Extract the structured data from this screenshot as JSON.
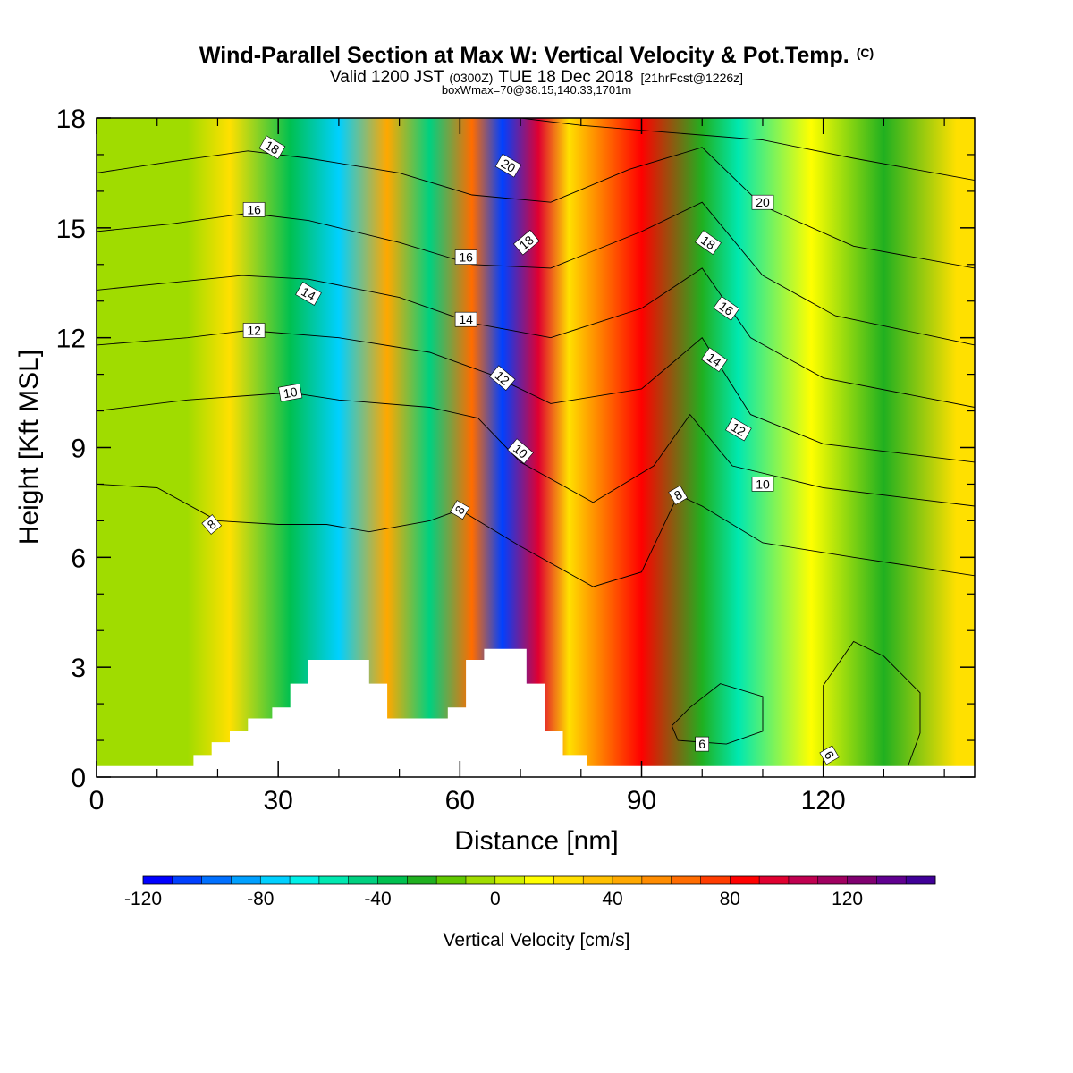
{
  "header": {
    "title": "Wind-Parallel Section at Max W: Vertical Velocity & Pot.Temp.",
    "copyright": "(C)",
    "valid_main": "Valid 1200 JST",
    "valid_utc": "(0300Z)",
    "valid_date": "TUE 18 Dec 2018",
    "forecast": "[21hrFcst@1226z]",
    "box_info": "boxWmax=70@38.15,140.33,1701m"
  },
  "chart_data": {
    "type": "heatmap",
    "xlabel": "Distance [nm]",
    "ylabel": "Height [Kft MSL]",
    "xlim": [
      0,
      145
    ],
    "ylim": [
      0,
      18
    ],
    "x_ticks": [
      {
        "value": 0,
        "label": "0"
      },
      {
        "value": 30,
        "label": "30"
      },
      {
        "value": 60,
        "label": "60"
      },
      {
        "value": 90,
        "label": "90"
      },
      {
        "value": 120,
        "label": "120"
      }
    ],
    "y_ticks": [
      {
        "value": 0,
        "label": "0"
      },
      {
        "value": 3,
        "label": "3"
      },
      {
        "value": 6,
        "label": "6"
      },
      {
        "value": 9,
        "label": "9"
      },
      {
        "value": 12,
        "label": "12"
      },
      {
        "value": 15,
        "label": "15"
      },
      {
        "value": 18,
        "label": "18"
      }
    ],
    "field": "Vertical Velocity",
    "bands": [
      {
        "x": 5,
        "w": -8
      },
      {
        "x": 15,
        "w": -3
      },
      {
        "x": 22,
        "w": 28
      },
      {
        "x": 32,
        "w": -35
      },
      {
        "x": 40,
        "w": -75
      },
      {
        "x": 48,
        "w": 45
      },
      {
        "x": 55,
        "w": -45
      },
      {
        "x": 62,
        "w": 65
      },
      {
        "x": 67,
        "w": -110
      },
      {
        "x": 73,
        "w": 90
      },
      {
        "x": 78,
        "w": 20
      },
      {
        "x": 90,
        "w": 80
      },
      {
        "x": 100,
        "w": -25
      },
      {
        "x": 106,
        "w": -60
      },
      {
        "x": 118,
        "w": 18
      },
      {
        "x": 130,
        "w": -30
      },
      {
        "x": 142,
        "w": 20
      }
    ],
    "terrain": [
      {
        "x": 0,
        "h": 0.3
      },
      {
        "x": 16,
        "h": 0.3
      },
      {
        "x": 16,
        "h": 0.6
      },
      {
        "x": 19,
        "h": 0.6
      },
      {
        "x": 19,
        "h": 0.95
      },
      {
        "x": 22,
        "h": 0.95
      },
      {
        "x": 22,
        "h": 1.25
      },
      {
        "x": 25,
        "h": 1.25
      },
      {
        "x": 25,
        "h": 1.6
      },
      {
        "x": 29,
        "h": 1.6
      },
      {
        "x": 29,
        "h": 1.9
      },
      {
        "x": 32,
        "h": 1.9
      },
      {
        "x": 32,
        "h": 2.55
      },
      {
        "x": 35,
        "h": 2.55
      },
      {
        "x": 35,
        "h": 3.2
      },
      {
        "x": 45,
        "h": 3.2
      },
      {
        "x": 45,
        "h": 2.55
      },
      {
        "x": 48,
        "h": 2.55
      },
      {
        "x": 48,
        "h": 1.6
      },
      {
        "x": 58,
        "h": 1.6
      },
      {
        "x": 58,
        "h": 1.9
      },
      {
        "x": 61,
        "h": 1.9
      },
      {
        "x": 61,
        "h": 3.2
      },
      {
        "x": 64,
        "h": 3.2
      },
      {
        "x": 64,
        "h": 3.5
      },
      {
        "x": 71,
        "h": 3.5
      },
      {
        "x": 71,
        "h": 2.55
      },
      {
        "x": 74,
        "h": 2.55
      },
      {
        "x": 74,
        "h": 1.25
      },
      {
        "x": 77,
        "h": 1.25
      },
      {
        "x": 77,
        "h": 0.6
      },
      {
        "x": 81,
        "h": 0.6
      },
      {
        "x": 81,
        "h": 0.3
      },
      {
        "x": 145,
        "h": 0.3
      }
    ],
    "isentropes": [
      {
        "level": 6,
        "points": [
          [
            95,
            1.4
          ],
          [
            98,
            1.9
          ],
          [
            103,
            2.55
          ],
          [
            110,
            2.2
          ],
          [
            110,
            1.25
          ],
          [
            104,
            0.9
          ],
          [
            96,
            1.0
          ],
          [
            95,
            1.4
          ]
        ]
      },
      {
        "level": 6,
        "points": [
          [
            120,
            0.3
          ],
          [
            120,
            2.5
          ],
          [
            125,
            3.7
          ],
          [
            130,
            3.3
          ],
          [
            136,
            2.3
          ],
          [
            136,
            1.2
          ],
          [
            134,
            0.3
          ]
        ]
      },
      {
        "level": 8,
        "points": [
          [
            0,
            8.0
          ],
          [
            10,
            7.9
          ],
          [
            20,
            7.0
          ],
          [
            30,
            6.9
          ],
          [
            38,
            6.9
          ],
          [
            45,
            6.7
          ],
          [
            55,
            7.0
          ],
          [
            60,
            7.3
          ],
          [
            70,
            6.3
          ],
          [
            82,
            5.2
          ],
          [
            90,
            5.6
          ],
          [
            96,
            7.7
          ],
          [
            100,
            7.4
          ],
          [
            110,
            6.4
          ],
          [
            125,
            6.0
          ],
          [
            145,
            5.5
          ]
        ]
      },
      {
        "level": 10,
        "points": [
          [
            0,
            10.0
          ],
          [
            15,
            10.3
          ],
          [
            32,
            10.5
          ],
          [
            40,
            10.3
          ],
          [
            55,
            10.1
          ],
          [
            63,
            9.8
          ],
          [
            70,
            8.6
          ],
          [
            82,
            7.5
          ],
          [
            92,
            8.5
          ],
          [
            98,
            9.9
          ],
          [
            105,
            8.5
          ],
          [
            120,
            7.9
          ],
          [
            145,
            7.4
          ]
        ]
      },
      {
        "level": 12,
        "points": [
          [
            0,
            11.8
          ],
          [
            15,
            12.0
          ],
          [
            25,
            12.2
          ],
          [
            40,
            12.0
          ],
          [
            55,
            11.6
          ],
          [
            65,
            11.0
          ],
          [
            75,
            10.2
          ],
          [
            90,
            10.6
          ],
          [
            100,
            12.0
          ],
          [
            108,
            9.9
          ],
          [
            120,
            9.1
          ],
          [
            145,
            8.6
          ]
        ]
      },
      {
        "level": 14,
        "points": [
          [
            0,
            13.3
          ],
          [
            12,
            13.5
          ],
          [
            24,
            13.7
          ],
          [
            35,
            13.6
          ],
          [
            50,
            13.1
          ],
          [
            62,
            12.4
          ],
          [
            75,
            12.0
          ],
          [
            90,
            12.8
          ],
          [
            100,
            13.9
          ],
          [
            108,
            12.0
          ],
          [
            120,
            10.9
          ],
          [
            145,
            10.1
          ]
        ]
      },
      {
        "level": 16,
        "points": [
          [
            0,
            14.9
          ],
          [
            12,
            15.1
          ],
          [
            25,
            15.4
          ],
          [
            35,
            15.2
          ],
          [
            50,
            14.6
          ],
          [
            62,
            14.0
          ],
          [
            75,
            13.9
          ],
          [
            90,
            14.9
          ],
          [
            100,
            15.7
          ],
          [
            110,
            13.7
          ],
          [
            122,
            12.6
          ],
          [
            145,
            11.8
          ]
        ]
      },
      {
        "level": 18,
        "points": [
          [
            0,
            16.5
          ],
          [
            12,
            16.8
          ],
          [
            25,
            17.1
          ],
          [
            35,
            16.9
          ],
          [
            50,
            16.5
          ],
          [
            62,
            15.9
          ],
          [
            75,
            15.7
          ],
          [
            88,
            16.6
          ],
          [
            100,
            17.2
          ],
          [
            110,
            15.6
          ],
          [
            125,
            14.5
          ],
          [
            145,
            13.9
          ]
        ]
      },
      {
        "level": 20,
        "points": [
          [
            70,
            18.0
          ],
          [
            80,
            17.8
          ],
          [
            95,
            17.6
          ],
          [
            110,
            17.4
          ],
          [
            125,
            16.9
          ],
          [
            145,
            16.3
          ]
        ]
      }
    ],
    "isentrope_labels": [
      {
        "x": 19,
        "y": 6.9,
        "text": "8",
        "angle": -40
      },
      {
        "x": 60,
        "y": 7.3,
        "text": "8",
        "angle": -60
      },
      {
        "x": 96,
        "y": 7.7,
        "text": "8",
        "angle": -30
      },
      {
        "x": 32,
        "y": 10.5,
        "text": "10",
        "angle": -10
      },
      {
        "x": 70,
        "y": 8.9,
        "text": "10",
        "angle": 40
      },
      {
        "x": 110,
        "y": 8.0,
        "text": "10",
        "angle": 0
      },
      {
        "x": 26,
        "y": 12.2,
        "text": "12",
        "angle": 0
      },
      {
        "x": 67,
        "y": 10.9,
        "text": "12",
        "angle": 40
      },
      {
        "x": 106,
        "y": 9.5,
        "text": "12",
        "angle": 30
      },
      {
        "x": 35,
        "y": 13.2,
        "text": "14",
        "angle": 30
      },
      {
        "x": 61,
        "y": 12.5,
        "text": "14",
        "angle": 0
      },
      {
        "x": 102,
        "y": 11.4,
        "text": "14",
        "angle": 35
      },
      {
        "x": 26,
        "y": 15.5,
        "text": "16",
        "angle": 0
      },
      {
        "x": 61,
        "y": 14.2,
        "text": "16",
        "angle": 0
      },
      {
        "x": 104,
        "y": 12.8,
        "text": "16",
        "angle": 35
      },
      {
        "x": 29,
        "y": 17.2,
        "text": "18",
        "angle": 30
      },
      {
        "x": 71,
        "y": 14.6,
        "text": "18",
        "angle": -40
      },
      {
        "x": 101,
        "y": 14.6,
        "text": "18",
        "angle": 35
      },
      {
        "x": 68,
        "y": 16.7,
        "text": "20",
        "angle": 30
      },
      {
        "x": 110,
        "y": 15.7,
        "text": "20",
        "angle": 0
      },
      {
        "x": 100,
        "y": 0.9,
        "text": "6",
        "angle": 0
      },
      {
        "x": 121,
        "y": 0.6,
        "text": "6",
        "angle": 60
      }
    ]
  },
  "colorbar": {
    "label": "Vertical Velocity [cm/s]",
    "min": -120,
    "max": 150,
    "step": 10,
    "tick_labels": [
      {
        "value": -120,
        "label": "-120"
      },
      {
        "value": -80,
        "label": "-80"
      },
      {
        "value": -40,
        "label": "-40"
      },
      {
        "value": 0,
        "label": "0"
      },
      {
        "value": 40,
        "label": "40"
      },
      {
        "value": 80,
        "label": "80"
      },
      {
        "value": 120,
        "label": "120"
      }
    ],
    "colors": [
      "#0000ff",
      "#0040ff",
      "#0070ff",
      "#00a0ff",
      "#00d0ff",
      "#00f0e8",
      "#00e8b0",
      "#00d080",
      "#00c050",
      "#20b020",
      "#60c800",
      "#a0dc00",
      "#d0f000",
      "#ffff00",
      "#ffe000",
      "#ffc000",
      "#ffa800",
      "#ff8c00",
      "#ff6c00",
      "#ff3c00",
      "#ff0000",
      "#e00030",
      "#c00050",
      "#a00060",
      "#800070",
      "#600090",
      "#400098"
    ]
  }
}
